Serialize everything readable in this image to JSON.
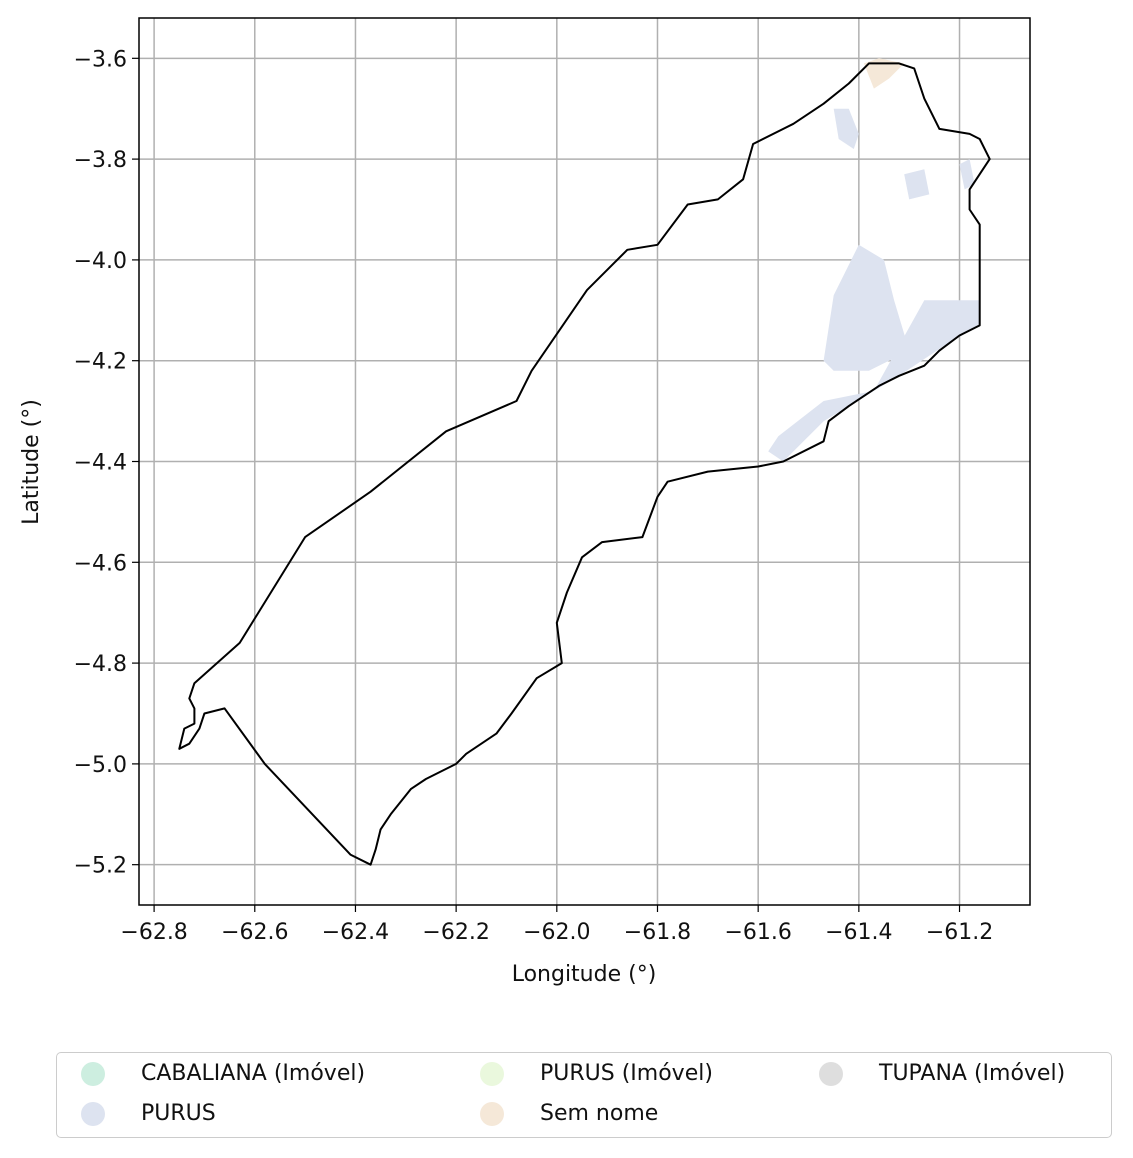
{
  "chart_data": {
    "type": "map",
    "title": "",
    "xlabel": "Longitude (°)",
    "ylabel": "Latitude (°)",
    "xlim": [
      -62.83,
      -61.06
    ],
    "ylim": [
      -5.28,
      -3.52
    ],
    "grid": true,
    "x_ticks": [
      -62.8,
      -62.6,
      -62.4,
      -62.2,
      -62.0,
      -61.8,
      -61.6,
      -61.4,
      -61.2
    ],
    "x_tick_labels": [
      "−62.8",
      "−62.6",
      "−62.4",
      "−62.2",
      "−62.0",
      "−61.8",
      "−61.6",
      "−61.4",
      "−61.2"
    ],
    "y_ticks": [
      -3.6,
      -3.8,
      -4.0,
      -4.2,
      -4.4,
      -4.6,
      -4.8,
      -5.0,
      -5.2
    ],
    "y_tick_labels": [
      "−3.6",
      "−3.8",
      "−4.0",
      "−4.2",
      "−4.4",
      "−4.6",
      "−4.8",
      "−5.0",
      "−5.2"
    ],
    "boundary": [
      [
        -62.72,
        -4.84
      ],
      [
        -62.63,
        -4.76
      ],
      [
        -62.5,
        -4.55
      ],
      [
        -62.37,
        -4.46
      ],
      [
        -62.22,
        -4.34
      ],
      [
        -62.08,
        -4.28
      ],
      [
        -62.05,
        -4.22
      ],
      [
        -61.94,
        -4.06
      ],
      [
        -61.86,
        -3.98
      ],
      [
        -61.8,
        -3.97
      ],
      [
        -61.74,
        -3.89
      ],
      [
        -61.68,
        -3.88
      ],
      [
        -61.63,
        -3.84
      ],
      [
        -61.61,
        -3.77
      ],
      [
        -61.53,
        -3.73
      ],
      [
        -61.47,
        -3.69
      ],
      [
        -61.42,
        -3.65
      ],
      [
        -61.38,
        -3.61
      ],
      [
        -61.35,
        -3.61
      ],
      [
        -61.32,
        -3.61
      ],
      [
        -61.29,
        -3.62
      ],
      [
        -61.27,
        -3.68
      ],
      [
        -61.24,
        -3.74
      ],
      [
        -61.18,
        -3.75
      ],
      [
        -61.16,
        -3.76
      ],
      [
        -61.14,
        -3.8
      ],
      [
        -61.18,
        -3.86
      ],
      [
        -61.18,
        -3.9
      ],
      [
        -61.16,
        -3.93
      ],
      [
        -61.16,
        -4.13
      ],
      [
        -61.2,
        -4.15
      ],
      [
        -61.24,
        -4.18
      ],
      [
        -61.27,
        -4.21
      ],
      [
        -61.32,
        -4.23
      ],
      [
        -61.36,
        -4.25
      ],
      [
        -61.42,
        -4.29
      ],
      [
        -61.46,
        -4.32
      ],
      [
        -61.47,
        -4.36
      ],
      [
        -61.55,
        -4.4
      ],
      [
        -61.6,
        -4.41
      ],
      [
        -61.7,
        -4.42
      ],
      [
        -61.78,
        -4.44
      ],
      [
        -61.8,
        -4.47
      ],
      [
        -61.83,
        -4.55
      ],
      [
        -61.91,
        -4.56
      ],
      [
        -61.95,
        -4.59
      ],
      [
        -61.98,
        -4.66
      ],
      [
        -62.0,
        -4.72
      ],
      [
        -61.99,
        -4.8
      ],
      [
        -62.04,
        -4.83
      ],
      [
        -62.09,
        -4.9
      ],
      [
        -62.12,
        -4.94
      ],
      [
        -62.18,
        -4.98
      ],
      [
        -62.2,
        -5.0
      ],
      [
        -62.26,
        -5.03
      ],
      [
        -62.29,
        -5.05
      ],
      [
        -62.33,
        -5.1
      ],
      [
        -62.35,
        -5.13
      ],
      [
        -62.36,
        -5.17
      ],
      [
        -62.37,
        -5.2
      ],
      [
        -62.41,
        -5.18
      ],
      [
        -62.58,
        -5.0
      ],
      [
        -62.66,
        -4.89
      ],
      [
        -62.7,
        -4.9
      ],
      [
        -62.71,
        -4.93
      ],
      [
        -62.73,
        -4.96
      ],
      [
        -62.75,
        -4.97
      ],
      [
        -62.74,
        -4.93
      ],
      [
        -62.72,
        -4.92
      ],
      [
        -62.72,
        -4.89
      ],
      [
        -62.73,
        -4.87
      ],
      [
        -62.72,
        -4.84
      ]
    ],
    "layers": [
      {
        "name": "PURUS",
        "color": "#dde3f0",
        "polygons": [
          [
            [
              -61.47,
              -4.2
            ],
            [
              -61.45,
              -4.07
            ],
            [
              -61.4,
              -3.97
            ],
            [
              -61.35,
              -4.0
            ],
            [
              -61.33,
              -4.08
            ],
            [
              -61.3,
              -4.18
            ],
            [
              -61.38,
              -4.22
            ],
            [
              -61.45,
              -4.22
            ]
          ],
          [
            [
              -61.37,
              -4.26
            ],
            [
              -61.27,
              -4.08
            ],
            [
              -61.16,
              -4.08
            ],
            [
              -61.16,
              -4.13
            ],
            [
              -61.23,
              -4.17
            ],
            [
              -61.32,
              -4.23
            ],
            [
              -61.42,
              -4.29
            ],
            [
              -61.47,
              -4.32
            ],
            [
              -61.55,
              -4.4
            ],
            [
              -61.58,
              -4.38
            ],
            [
              -61.56,
              -4.35
            ],
            [
              -61.47,
              -4.28
            ]
          ],
          [
            [
              -61.31,
              -3.83
            ],
            [
              -61.27,
              -3.82
            ],
            [
              -61.26,
              -3.87
            ],
            [
              -61.3,
              -3.88
            ]
          ],
          [
            [
              -61.45,
              -3.7
            ],
            [
              -61.42,
              -3.7
            ],
            [
              -61.4,
              -3.75
            ],
            [
              -61.41,
              -3.78
            ],
            [
              -61.44,
              -3.76
            ]
          ],
          [
            [
              -61.2,
              -3.81
            ],
            [
              -61.18,
              -3.8
            ],
            [
              -61.17,
              -3.85
            ],
            [
              -61.19,
              -3.86
            ]
          ]
        ]
      },
      {
        "name": "Sem nome",
        "color": "#f5e8d8",
        "polygons": [
          [
            [
              -61.39,
              -3.61
            ],
            [
              -61.36,
              -3.6
            ],
            [
              -61.31,
              -3.61
            ],
            [
              -61.34,
              -3.64
            ],
            [
              -61.37,
              -3.66
            ]
          ]
        ]
      }
    ],
    "legend": {
      "placement": "bottom",
      "columns": 3,
      "entries": [
        {
          "label": "CABALIANA (Imóvel)",
          "color": "#cdeee0"
        },
        {
          "label": "PURUS",
          "color": "#dde3f0"
        },
        {
          "label": "PURUS (Imóvel)",
          "color": "#eaf8dd"
        },
        {
          "label": "Sem nome",
          "color": "#f5e8d8"
        },
        {
          "label": "TUPANA (Imóvel)",
          "color": "#dedede"
        }
      ]
    }
  }
}
